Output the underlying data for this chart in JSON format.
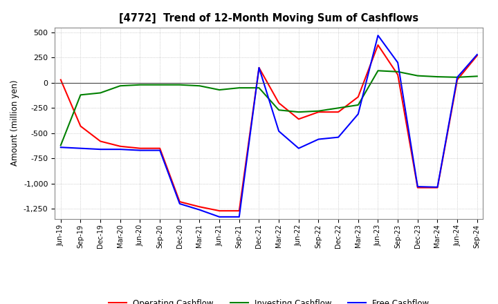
{
  "title": "[4772]  Trend of 12-Month Moving Sum of Cashflows",
  "ylabel": "Amount (million yen)",
  "xlabels": [
    "Jun-19",
    "Sep-19",
    "Dec-19",
    "Mar-20",
    "Jun-20",
    "Sep-20",
    "Dec-20",
    "Mar-21",
    "Jun-21",
    "Sep-21",
    "Dec-21",
    "Mar-22",
    "Jun-22",
    "Sep-22",
    "Dec-22",
    "Mar-23",
    "Jun-23",
    "Sep-23",
    "Dec-23",
    "Mar-24",
    "Jun-24",
    "Sep-24"
  ],
  "operating": [
    30,
    -430,
    -580,
    -630,
    -650,
    -650,
    -1180,
    -1230,
    -1270,
    -1270,
    150,
    -200,
    -360,
    -290,
    -290,
    -140,
    375,
    80,
    -1040,
    -1040,
    30,
    270
  ],
  "investing": [
    -620,
    -120,
    -100,
    -30,
    -20,
    -20,
    -20,
    -30,
    -70,
    -50,
    -50,
    -270,
    -290,
    -280,
    -250,
    -220,
    120,
    110,
    70,
    60,
    55,
    65
  ],
  "free": [
    -640,
    -650,
    -660,
    -660,
    -670,
    -670,
    -1200,
    -1260,
    -1330,
    -1330,
    150,
    -480,
    -650,
    -560,
    -540,
    -310,
    470,
    200,
    -1030,
    -1035,
    55,
    280
  ],
  "ylim": [
    -1350,
    550
  ],
  "yticks": [
    -1250,
    -1000,
    -750,
    -500,
    -250,
    0,
    250,
    500
  ],
  "colors": {
    "operating": "#ff0000",
    "investing": "#008000",
    "free": "#0000ff"
  },
  "legend_labels": [
    "Operating Cashflow",
    "Investing Cashflow",
    "Free Cashflow"
  ],
  "background_color": "#ffffff",
  "grid_color": "#b0b0b0"
}
